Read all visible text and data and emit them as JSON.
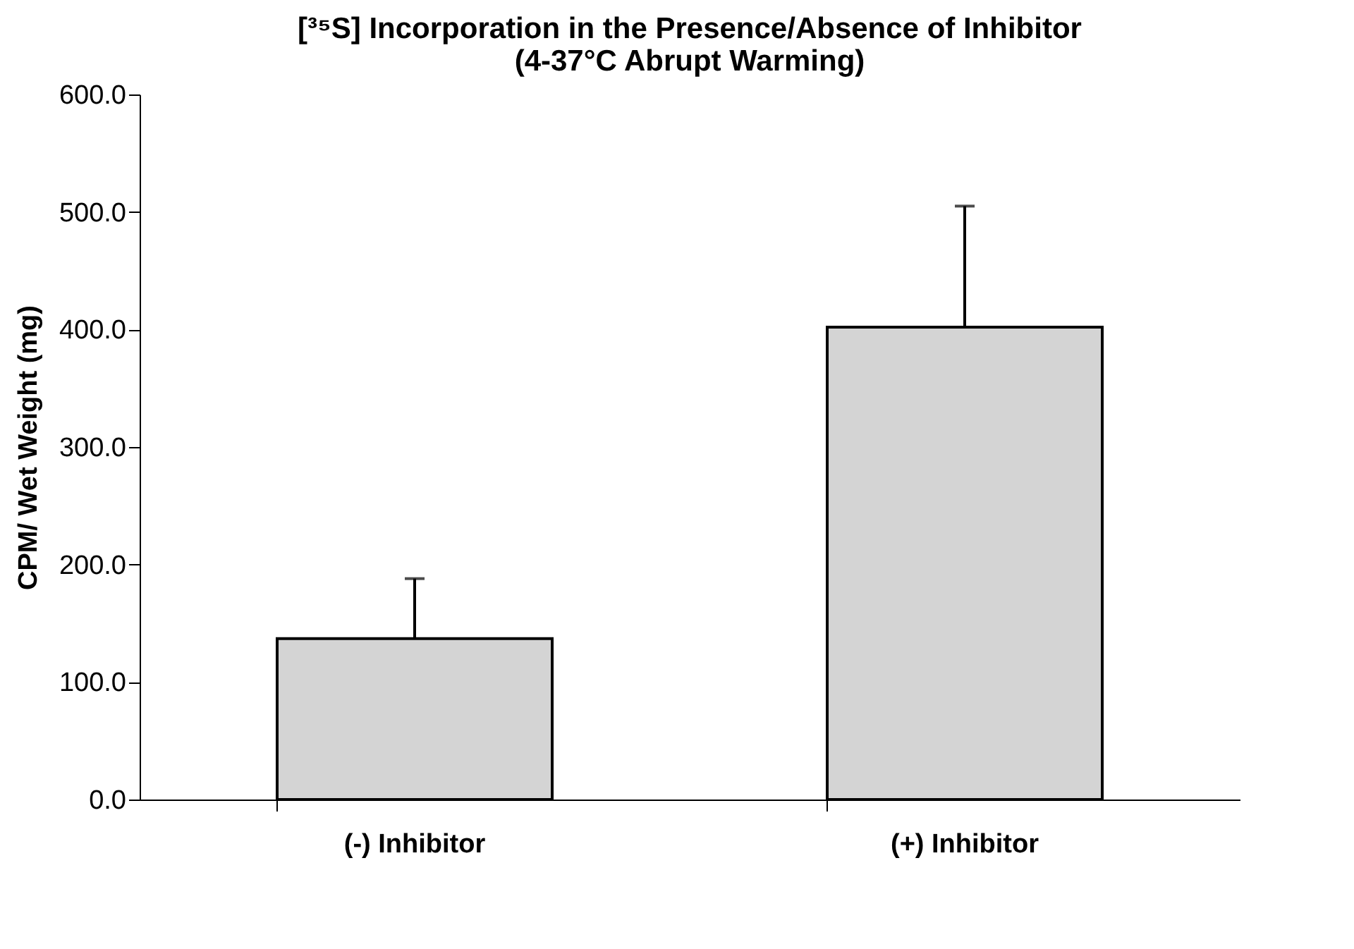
{
  "chart_data": {
    "type": "bar",
    "title": [
      "[³⁵S] Incorporation in the Presence/Absence of Inhibitor",
      "(4-37°C Abrupt Warming)"
    ],
    "ylabel": "CPM/ Wet Weight (mg)",
    "categories": [
      "(-) Inhibitor",
      "(+) Inhibitor"
    ],
    "values": [
      137,
      402
    ],
    "errors": [
      [
        137,
        188
      ],
      [
        402,
        505
      ]
    ],
    "color": "#d4d4d4",
    "ylim": [
      0,
      600
    ],
    "yticks": [
      {
        "value": 0,
        "label": "0.0"
      },
      {
        "value": 100,
        "label": "100.0"
      },
      {
        "value": 200,
        "label": "200.0"
      },
      {
        "value": 300,
        "label": "300.0"
      },
      {
        "value": 400,
        "label": "400.0"
      },
      {
        "value": 500,
        "label": "500.0"
      },
      {
        "value": 600,
        "label": "600.0"
      }
    ],
    "grid": false
  }
}
